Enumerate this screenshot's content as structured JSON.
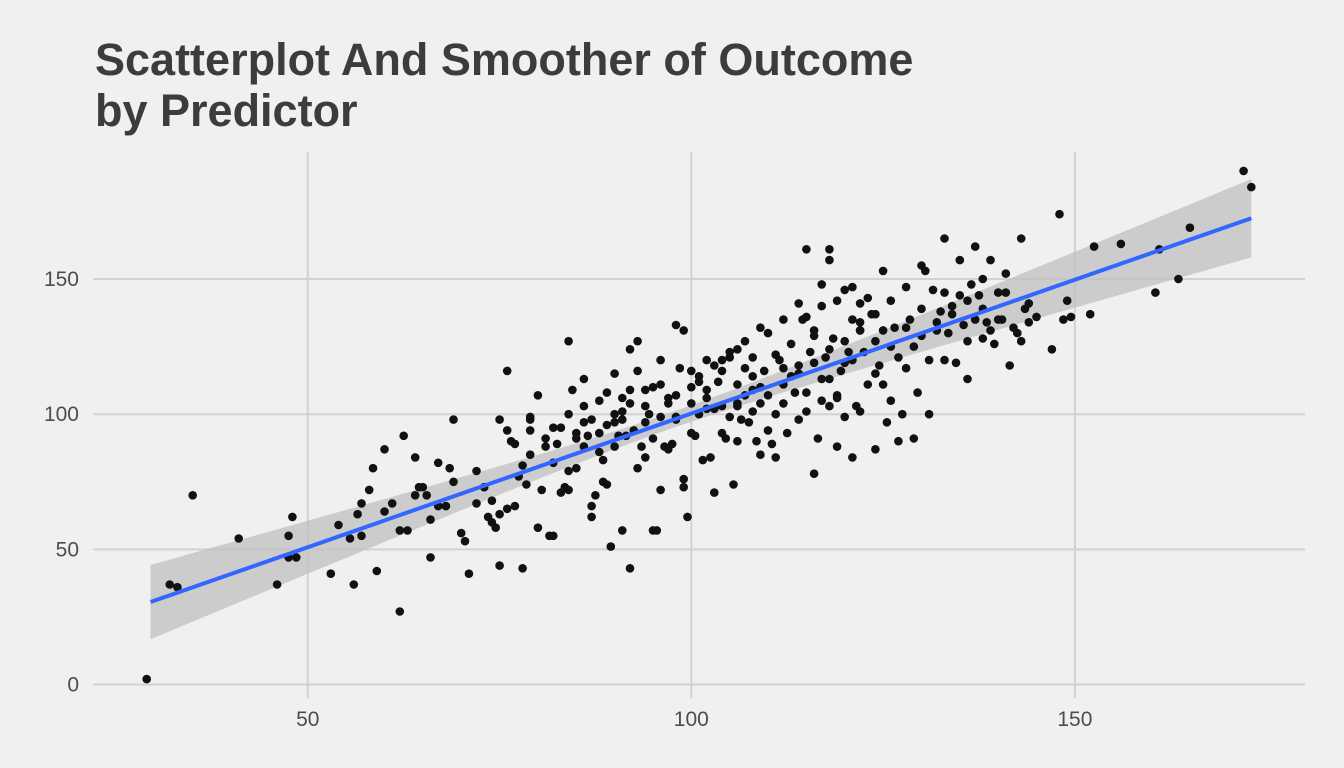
{
  "chart_data": {
    "type": "scatter",
    "title_lines": [
      "Scatterplot And Smoother of Outcome",
      "by Predictor"
    ],
    "xlabel": "",
    "ylabel": "",
    "xlim": [
      22,
      180
    ],
    "ylim": [
      -5,
      197
    ],
    "x_ticks": [
      50,
      100,
      150
    ],
    "y_ticks": [
      0,
      50,
      100,
      150
    ],
    "grid": true,
    "legend": "none",
    "colors": {
      "background": "#f0f0f0",
      "grid": "#d2d2d2",
      "points": "#111111",
      "smoother": "#3366ff",
      "band": "#c0c0c0"
    },
    "smoother": {
      "method": "linear",
      "x": [
        29.5,
        173
      ],
      "y": [
        30.5,
        172.5
      ],
      "ci_low": [
        17,
        159
      ],
      "ci_high": [
        44.5,
        188
      ]
    },
    "points": [
      [
        29,
        2
      ],
      [
        32,
        37
      ],
      [
        33,
        36
      ],
      [
        35,
        70
      ],
      [
        41,
        54
      ],
      [
        46,
        37
      ],
      [
        47.5,
        55
      ],
      [
        47.5,
        47
      ],
      [
        48,
        62
      ],
      [
        48.5,
        47
      ],
      [
        53,
        41
      ],
      [
        54,
        59
      ],
      [
        55.5,
        54
      ],
      [
        56,
        37
      ],
      [
        56.5,
        63
      ],
      [
        57,
        67
      ],
      [
        58,
        72
      ],
      [
        58.5,
        80
      ],
      [
        59,
        42
      ],
      [
        60,
        87
      ],
      [
        61,
        67
      ],
      [
        62,
        57
      ],
      [
        62.5,
        92
      ],
      [
        63,
        57
      ],
      [
        62,
        27
      ],
      [
        64,
        70
      ],
      [
        64.5,
        73
      ],
      [
        65,
        73
      ],
      [
        65.5,
        70
      ],
      [
        66,
        61
      ],
      [
        66,
        47
      ],
      [
        67,
        82
      ],
      [
        68,
        66
      ],
      [
        68.5,
        80
      ],
      [
        69,
        98
      ],
      [
        70,
        56
      ],
      [
        70.5,
        53
      ],
      [
        71,
        41
      ],
      [
        72,
        67
      ],
      [
        73,
        73
      ],
      [
        73.5,
        62
      ],
      [
        74,
        68
      ],
      [
        74,
        60
      ],
      [
        74.5,
        58
      ],
      [
        75,
        44
      ],
      [
        75,
        63
      ],
      [
        76,
        65
      ],
      [
        76,
        94
      ],
      [
        76.5,
        90
      ],
      [
        76,
        116
      ],
      [
        77,
        66
      ],
      [
        77.5,
        77
      ],
      [
        78,
        43
      ],
      [
        78.5,
        74
      ],
      [
        79,
        98
      ],
      [
        79,
        85
      ],
      [
        80,
        58
      ],
      [
        80.5,
        72
      ],
      [
        81,
        91
      ],
      [
        81.5,
        55
      ],
      [
        82,
        82
      ],
      [
        82,
        55
      ],
      [
        82.5,
        89
      ],
      [
        83,
        71
      ],
      [
        83.5,
        73
      ],
      [
        84,
        72
      ],
      [
        84,
        79
      ],
      [
        84.5,
        109
      ],
      [
        85,
        91
      ],
      [
        85,
        80
      ],
      [
        86,
        103
      ],
      [
        86,
        97
      ],
      [
        86.5,
        92
      ],
      [
        87,
        66
      ],
      [
        87.5,
        70
      ],
      [
        88,
        86
      ],
      [
        88.5,
        83
      ],
      [
        89,
        96
      ],
      [
        89,
        74
      ],
      [
        89.5,
        51
      ],
      [
        90,
        88
      ],
      [
        90,
        100
      ],
      [
        90.5,
        92
      ],
      [
        91,
        106
      ],
      [
        91,
        98
      ],
      [
        91.5,
        92
      ],
      [
        92,
        104
      ],
      [
        92,
        43
      ],
      [
        92.5,
        94
      ],
      [
        93,
        127
      ],
      [
        93,
        80
      ],
      [
        93.5,
        88
      ],
      [
        94,
        84
      ],
      [
        94,
        103
      ],
      [
        94.5,
        100
      ],
      [
        95,
        91
      ],
      [
        95.5,
        57
      ],
      [
        96,
        72
      ],
      [
        96,
        99
      ],
      [
        96.5,
        88
      ],
      [
        97,
        106
      ],
      [
        97,
        87
      ],
      [
        97.5,
        89
      ],
      [
        98,
        98
      ],
      [
        98,
        107
      ],
      [
        98.5,
        117
      ],
      [
        99,
        76
      ],
      [
        99.5,
        62
      ],
      [
        100,
        93
      ],
      [
        100,
        110
      ],
      [
        100.5,
        92
      ],
      [
        101,
        114
      ],
      [
        101,
        100
      ],
      [
        101.5,
        83
      ],
      [
        102,
        120
      ],
      [
        102,
        102
      ],
      [
        102.5,
        84
      ],
      [
        103,
        102
      ],
      [
        103.5,
        112
      ],
      [
        104,
        116
      ],
      [
        104,
        93
      ],
      [
        104.5,
        91
      ],
      [
        105,
        121
      ],
      [
        105,
        99
      ],
      [
        105.5,
        74
      ],
      [
        106,
        104
      ],
      [
        106,
        90
      ],
      [
        106.5,
        98
      ],
      [
        107,
        107
      ],
      [
        107,
        117
      ],
      [
        107.5,
        97
      ],
      [
        108,
        109
      ],
      [
        108,
        101
      ],
      [
        108.5,
        90
      ],
      [
        109,
        104
      ],
      [
        109,
        110
      ],
      [
        109.5,
        116
      ],
      [
        110,
        94
      ],
      [
        110.5,
        89
      ],
      [
        111,
        122
      ],
      [
        111,
        100
      ],
      [
        111.5,
        120
      ],
      [
        112,
        117
      ],
      [
        112,
        104
      ],
      [
        112.5,
        93
      ],
      [
        113,
        114
      ],
      [
        113,
        126
      ],
      [
        113.5,
        108
      ],
      [
        114,
        115
      ],
      [
        114,
        98
      ],
      [
        114.5,
        135
      ],
      [
        115,
        108
      ],
      [
        115,
        101
      ],
      [
        115.5,
        123
      ],
      [
        116,
        119
      ],
      [
        116,
        129
      ],
      [
        116.5,
        91
      ],
      [
        117,
        105
      ],
      [
        117,
        113
      ],
      [
        117.5,
        121
      ],
      [
        118,
        113
      ],
      [
        118,
        103
      ],
      [
        118.5,
        128
      ],
      [
        119,
        107
      ],
      [
        119,
        88
      ],
      [
        119.5,
        116
      ],
      [
        120,
        119
      ],
      [
        120,
        99
      ],
      [
        120.5,
        123
      ],
      [
        121,
        135
      ],
      [
        121,
        120
      ],
      [
        121.5,
        103
      ],
      [
        122,
        131
      ],
      [
        122,
        101
      ],
      [
        122.5,
        123
      ],
      [
        123,
        111
      ],
      [
        123,
        143
      ],
      [
        123.5,
        137
      ],
      [
        124,
        127
      ],
      [
        124.5,
        118
      ],
      [
        125,
        131
      ],
      [
        125,
        111
      ],
      [
        125.5,
        97
      ],
      [
        126,
        105
      ],
      [
        126.5,
        132
      ],
      [
        127,
        121
      ],
      [
        127.5,
        100
      ],
      [
        128,
        117
      ],
      [
        128.5,
        135
      ],
      [
        129,
        125
      ],
      [
        129.5,
        108
      ],
      [
        130,
        129
      ],
      [
        130.5,
        153
      ],
      [
        131,
        120
      ],
      [
        131.5,
        146
      ],
      [
        132,
        131
      ],
      [
        132.5,
        138
      ],
      [
        133,
        145
      ],
      [
        133.5,
        130
      ],
      [
        134,
        137
      ],
      [
        134.5,
        119
      ],
      [
        135,
        144
      ],
      [
        135.5,
        133
      ],
      [
        136,
        127
      ],
      [
        136.5,
        148
      ],
      [
        137,
        135
      ],
      [
        137.5,
        144
      ],
      [
        138,
        128
      ],
      [
        138.5,
        134
      ],
      [
        139,
        131
      ],
      [
        139.5,
        126
      ],
      [
        140,
        135
      ],
      [
        140.5,
        135
      ],
      [
        141,
        145
      ],
      [
        141.5,
        118
      ],
      [
        142,
        132
      ],
      [
        142.5,
        130
      ],
      [
        143,
        127
      ],
      [
        143.5,
        139
      ],
      [
        144,
        141
      ],
      [
        87,
        62
      ],
      [
        88.5,
        75
      ],
      [
        91,
        57
      ],
      [
        95,
        57
      ],
      [
        99,
        73
      ],
      [
        103,
        71
      ],
      [
        106,
        103
      ],
      [
        109,
        85
      ],
      [
        111,
        84
      ],
      [
        116,
        78
      ],
      [
        119,
        106
      ],
      [
        121,
        84
      ],
      [
        124,
        87
      ],
      [
        127,
        90
      ],
      [
        129,
        91
      ],
      [
        131,
        100
      ],
      [
        133,
        120
      ],
      [
        136,
        113
      ],
      [
        121,
        147
      ],
      [
        125,
        153
      ],
      [
        130,
        155
      ],
      [
        133,
        165
      ],
      [
        135,
        157
      ],
      [
        137,
        162
      ],
      [
        138,
        150
      ],
      [
        139,
        157
      ],
      [
        141,
        152
      ],
      [
        143,
        165
      ],
      [
        144,
        134
      ],
      [
        145,
        136
      ],
      [
        147,
        124
      ],
      [
        148,
        174
      ],
      [
        148.5,
        135
      ],
      [
        149,
        142
      ],
      [
        149.5,
        136
      ],
      [
        152,
        137
      ],
      [
        152.5,
        162
      ],
      [
        156,
        163
      ],
      [
        160.5,
        145
      ],
      [
        161,
        161
      ],
      [
        163.5,
        150
      ],
      [
        165,
        169
      ],
      [
        172,
        190
      ],
      [
        173,
        184
      ],
      [
        84,
        127
      ],
      [
        80,
        107
      ],
      [
        79,
        99
      ],
      [
        77,
        89
      ],
      [
        75,
        98
      ],
      [
        72,
        79
      ],
      [
        69,
        75
      ],
      [
        67,
        66
      ],
      [
        64,
        84
      ],
      [
        60,
        64
      ],
      [
        57,
        55
      ],
      [
        86,
        113
      ],
      [
        88,
        93
      ],
      [
        90,
        115
      ],
      [
        92,
        124
      ],
      [
        94,
        109
      ],
      [
        96,
        120
      ],
      [
        98,
        133
      ],
      [
        99,
        131
      ],
      [
        101,
        112
      ],
      [
        103,
        118
      ],
      [
        105,
        123
      ],
      [
        107,
        127
      ],
      [
        109,
        132
      ],
      [
        110,
        130
      ],
      [
        112,
        135
      ],
      [
        114,
        141
      ],
      [
        115,
        136
      ],
      [
        117,
        148
      ],
      [
        118,
        161
      ],
      [
        120,
        146
      ],
      [
        122,
        141
      ],
      [
        124,
        137
      ],
      [
        126,
        142
      ],
      [
        128,
        147
      ],
      [
        115,
        161
      ],
      [
        118,
        157
      ],
      [
        117,
        140
      ],
      [
        119,
        142
      ],
      [
        122,
        134
      ],
      [
        108,
        121
      ],
      [
        106,
        124
      ],
      [
        104,
        120
      ],
      [
        102,
        106
      ],
      [
        100,
        104
      ],
      [
        97,
        104
      ],
      [
        95,
        110
      ],
      [
        93,
        116
      ],
      [
        91,
        101
      ],
      [
        89,
        108
      ],
      [
        87,
        98
      ],
      [
        85,
        93
      ],
      [
        83,
        95
      ],
      [
        81,
        88
      ],
      [
        79,
        94
      ],
      [
        78,
        81
      ],
      [
        82,
        95
      ],
      [
        84,
        100
      ],
      [
        86,
        88
      ],
      [
        88,
        105
      ],
      [
        90,
        97
      ],
      [
        92,
        109
      ],
      [
        94,
        97
      ],
      [
        96,
        111
      ],
      [
        98,
        99
      ],
      [
        100,
        116
      ],
      [
        102,
        109
      ],
      [
        104,
        103
      ],
      [
        106,
        111
      ],
      [
        108,
        114
      ],
      [
        110,
        107
      ],
      [
        112,
        111
      ],
      [
        114,
        118
      ],
      [
        116,
        131
      ],
      [
        118,
        124
      ],
      [
        120,
        127
      ],
      [
        122,
        131
      ],
      [
        124,
        115
      ],
      [
        126,
        125
      ],
      [
        128,
        132
      ],
      [
        130,
        139
      ],
      [
        132,
        134
      ],
      [
        134,
        140
      ],
      [
        136,
        142
      ],
      [
        138,
        139
      ],
      [
        140,
        145
      ]
    ]
  }
}
